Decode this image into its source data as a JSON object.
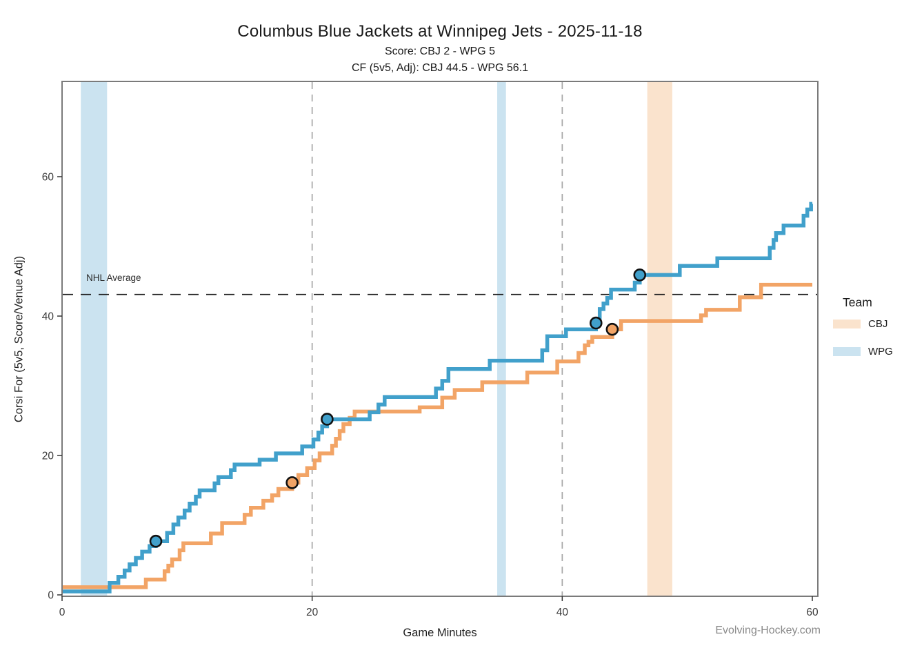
{
  "header": {
    "title": "Columbus Blue Jackets at Winnipeg Jets - 2025-11-18",
    "subtitle_score": "Score: CBJ 2 - WPG 5",
    "subtitle_cf": "CF (5v5, Adj): CBJ 44.5 - WPG 56.1"
  },
  "watermark": "Evolving-Hockey.com",
  "chart_data": {
    "type": "line",
    "step": true,
    "title": "Columbus Blue Jackets at Winnipeg Jets - 2025-11-18",
    "subtitle1": "Score: CBJ 2 - WPG 5",
    "subtitle2": "CF (5v5, Adj): CBJ 44.5 - WPG 56.1",
    "xlabel": "Game Minutes",
    "ylabel": "Corsi For (5v5, Score/Venue Adj)",
    "xlim": [
      0,
      60.4
    ],
    "ylim": [
      0,
      73.6
    ],
    "x_ticks": [
      0,
      20,
      40,
      60
    ],
    "y_ticks": [
      0,
      20,
      40,
      60
    ],
    "grid": false,
    "legend_title": "Team",
    "legend_position": "right",
    "period_lines_x": [
      20,
      40
    ],
    "nhl_average": {
      "label": "NHL Average",
      "value": 43.1
    },
    "series": [
      {
        "name": "CBJ",
        "line_color": "#F2A466",
        "band_color": "#FAE3CD",
        "final_cf": 44.5,
        "score": 2,
        "steps": [
          [
            0,
            1.1
          ],
          [
            6.7,
            2.2
          ],
          [
            8.2,
            3.4
          ],
          [
            8.5,
            4.2
          ],
          [
            8.8,
            5.1
          ],
          [
            9.4,
            6.4
          ],
          [
            9.7,
            7.4
          ],
          [
            11.9,
            8.8
          ],
          [
            12.8,
            10.3
          ],
          [
            14.6,
            11.5
          ],
          [
            15.1,
            12.5
          ],
          [
            16.1,
            13.5
          ],
          [
            16.8,
            14.3
          ],
          [
            17.3,
            15.2
          ],
          [
            18.4,
            16.1
          ],
          [
            18.9,
            17.2
          ],
          [
            19.6,
            18.2
          ],
          [
            20.2,
            19.3
          ],
          [
            20.6,
            20.3
          ],
          [
            21.6,
            21.4
          ],
          [
            21.9,
            22.4
          ],
          [
            22.2,
            23.5
          ],
          [
            22.5,
            24.5
          ],
          [
            23.0,
            25.4
          ],
          [
            23.4,
            26.3
          ],
          [
            28.6,
            26.9
          ],
          [
            30.4,
            28.3
          ],
          [
            31.4,
            29.4
          ],
          [
            33.6,
            30.5
          ],
          [
            37.2,
            31.9
          ],
          [
            39.6,
            33.5
          ],
          [
            41.3,
            34.7
          ],
          [
            41.8,
            35.8
          ],
          [
            42.1,
            36.3
          ],
          [
            42.4,
            37.0
          ],
          [
            44.0,
            38.1
          ],
          [
            44.7,
            39.3
          ],
          [
            51.1,
            40.1
          ],
          [
            51.5,
            40.9
          ],
          [
            54.2,
            42.7
          ],
          [
            55.9,
            44.5
          ]
        ],
        "goals": [
          [
            18.4,
            16.1
          ],
          [
            44.0,
            38.1
          ]
        ],
        "powerplay_bands": [
          [
            46.8,
            48.8
          ]
        ]
      },
      {
        "name": "WPG",
        "line_color": "#41A0CB",
        "band_color": "#CBE3F0",
        "final_cf": 56.1,
        "score": 5,
        "steps": [
          [
            0,
            0.5
          ],
          [
            3.8,
            1.7
          ],
          [
            4.5,
            2.6
          ],
          [
            5.0,
            3.5
          ],
          [
            5.4,
            4.4
          ],
          [
            5.9,
            5.3
          ],
          [
            6.4,
            6.2
          ],
          [
            7.0,
            7.0
          ],
          [
            7.5,
            7.7
          ],
          [
            8.4,
            8.9
          ],
          [
            8.9,
            10.1
          ],
          [
            9.3,
            11.1
          ],
          [
            9.8,
            12.1
          ],
          [
            10.2,
            13.1
          ],
          [
            10.7,
            14.1
          ],
          [
            11.0,
            15.0
          ],
          [
            12.2,
            16.0
          ],
          [
            12.5,
            16.9
          ],
          [
            13.5,
            17.9
          ],
          [
            13.8,
            18.7
          ],
          [
            15.8,
            19.4
          ],
          [
            17.1,
            20.3
          ],
          [
            19.2,
            21.3
          ],
          [
            20.1,
            22.3
          ],
          [
            20.5,
            23.3
          ],
          [
            20.8,
            24.2
          ],
          [
            21.2,
            25.2
          ],
          [
            24.6,
            26.2
          ],
          [
            25.3,
            27.3
          ],
          [
            25.8,
            28.4
          ],
          [
            29.9,
            29.6
          ],
          [
            30.4,
            30.7
          ],
          [
            30.9,
            32.4
          ],
          [
            34.2,
            33.6
          ],
          [
            38.4,
            35.1
          ],
          [
            38.8,
            37.1
          ],
          [
            40.3,
            38.1
          ],
          [
            42.7,
            39.0
          ],
          [
            43.0,
            41.0
          ],
          [
            43.3,
            41.8
          ],
          [
            43.6,
            42.6
          ],
          [
            43.9,
            43.8
          ],
          [
            45.8,
            44.8
          ],
          [
            46.2,
            45.9
          ],
          [
            49.4,
            47.2
          ],
          [
            52.4,
            48.3
          ],
          [
            56.6,
            49.8
          ],
          [
            56.9,
            50.9
          ],
          [
            57.1,
            51.9
          ],
          [
            57.7,
            53.0
          ],
          [
            59.3,
            54.4
          ],
          [
            59.6,
            55.3
          ],
          [
            59.9,
            56.1
          ]
        ],
        "goals": [
          [
            7.5,
            7.7
          ],
          [
            21.2,
            25.2
          ],
          [
            42.7,
            39.0
          ],
          [
            46.2,
            45.9
          ]
        ],
        "powerplay_bands": [
          [
            1.5,
            3.6
          ],
          [
            34.8,
            35.5
          ]
        ]
      }
    ]
  }
}
